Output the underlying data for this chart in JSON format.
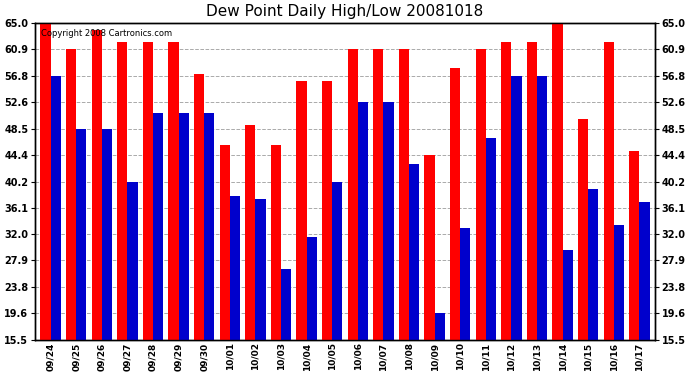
{
  "title": "Dew Point Daily High/Low 20081018",
  "copyright": "Copyright 2008 Cartronics.com",
  "dates": [
    "09/24",
    "09/25",
    "09/26",
    "09/27",
    "09/28",
    "09/29",
    "09/30",
    "10/01",
    "10/02",
    "10/03",
    "10/04",
    "10/05",
    "10/06",
    "10/07",
    "10/08",
    "10/09",
    "10/10",
    "10/11",
    "10/12",
    "10/13",
    "10/14",
    "10/15",
    "10/16",
    "10/17"
  ],
  "highs": [
    65.0,
    60.9,
    64.0,
    62.0,
    62.0,
    62.0,
    57.0,
    46.0,
    49.0,
    46.0,
    56.0,
    56.0,
    60.9,
    60.9,
    60.9,
    44.4,
    58.0,
    60.9,
    62.0,
    62.0,
    65.0,
    50.0,
    62.0,
    45.0
  ],
  "lows": [
    56.8,
    48.5,
    48.5,
    40.2,
    51.0,
    51.0,
    51.0,
    38.0,
    37.5,
    26.5,
    31.5,
    40.2,
    52.6,
    52.6,
    43.0,
    19.6,
    33.0,
    47.0,
    56.8,
    56.8,
    29.5,
    39.0,
    33.5,
    37.0
  ],
  "high_color": "#ff0000",
  "low_color": "#0000cc",
  "background_color": "#ffffff",
  "plot_background": "#ffffff",
  "grid_color": "#aaaaaa",
  "yticks": [
    15.5,
    19.6,
    23.8,
    27.9,
    32.0,
    36.1,
    40.2,
    44.4,
    48.5,
    52.6,
    56.8,
    60.9,
    65.0
  ],
  "ymin": 15.5,
  "ymax": 65.0,
  "bar_width": 0.4,
  "figwidth": 6.9,
  "figheight": 3.75,
  "dpi": 100
}
